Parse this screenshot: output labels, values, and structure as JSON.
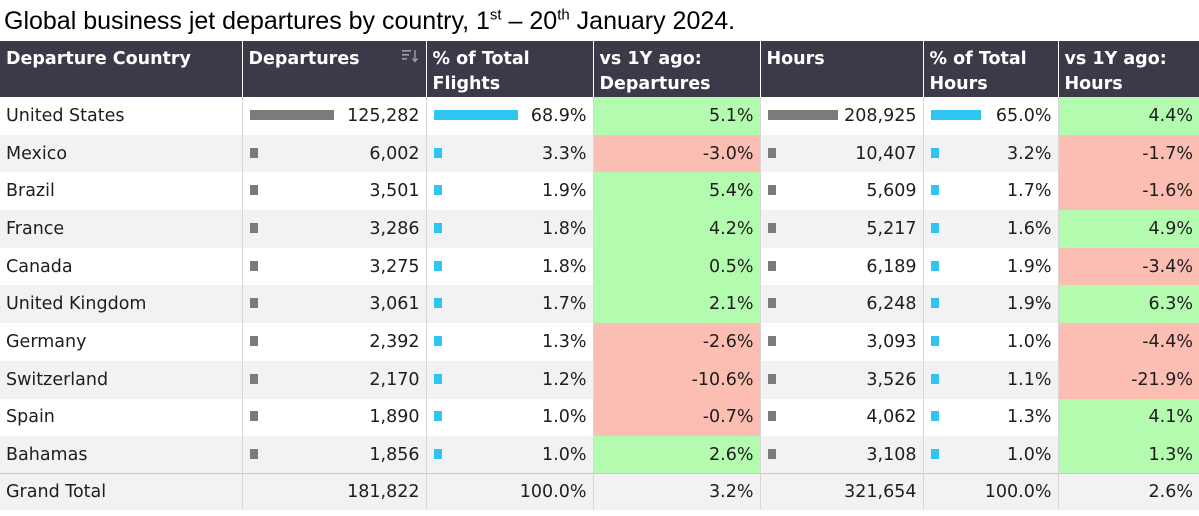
{
  "title": {
    "part1": "Global business jet departures by country, 1",
    "sup1": "st",
    "part2": " – 20",
    "sup2": "th",
    "part3": " January 2024."
  },
  "colors": {
    "positive": "#b3fbae",
    "negative": "#fcbdb3",
    "bar_gray": "#7b7b7b",
    "bar_blue": "#2ec5f3",
    "header_bg": "#3b3a49"
  },
  "chart_data": {
    "type": "table",
    "columns": [
      "Departure Country",
      "Departures",
      "% of Total Flights",
      "vs 1Y ago: Departures",
      "Hours",
      "% of Total Hours",
      "vs 1Y ago: Hours"
    ],
    "rows": [
      {
        "country": "United States",
        "departures": "125,282",
        "dep_share": "68.9%",
        "dep_yoy": "5.1%",
        "hours": "208,925",
        "hours_share": "65.0%",
        "hours_yoy": "4.4%",
        "dep_num": 125282,
        "dep_pct": 68.9,
        "dep_yoy_num": 5.1,
        "hours_num": 208925,
        "hours_pct": 65.0,
        "hours_yoy_num": 4.4
      },
      {
        "country": "Mexico",
        "departures": "6,002",
        "dep_share": "3.3%",
        "dep_yoy": "-3.0%",
        "hours": "10,407",
        "hours_share": "3.2%",
        "hours_yoy": "-1.7%",
        "dep_num": 6002,
        "dep_pct": 3.3,
        "dep_yoy_num": -3.0,
        "hours_num": 10407,
        "hours_pct": 3.2,
        "hours_yoy_num": -1.7
      },
      {
        "country": "Brazil",
        "departures": "3,501",
        "dep_share": "1.9%",
        "dep_yoy": "5.4%",
        "hours": "5,609",
        "hours_share": "1.7%",
        "hours_yoy": "-1.6%",
        "dep_num": 3501,
        "dep_pct": 1.9,
        "dep_yoy_num": 5.4,
        "hours_num": 5609,
        "hours_pct": 1.7,
        "hours_yoy_num": -1.6
      },
      {
        "country": "France",
        "departures": "3,286",
        "dep_share": "1.8%",
        "dep_yoy": "4.2%",
        "hours": "5,217",
        "hours_share": "1.6%",
        "hours_yoy": "4.9%",
        "dep_num": 3286,
        "dep_pct": 1.8,
        "dep_yoy_num": 4.2,
        "hours_num": 5217,
        "hours_pct": 1.6,
        "hours_yoy_num": 4.9
      },
      {
        "country": "Canada",
        "departures": "3,275",
        "dep_share": "1.8%",
        "dep_yoy": "0.5%",
        "hours": "6,189",
        "hours_share": "1.9%",
        "hours_yoy": "-3.4%",
        "dep_num": 3275,
        "dep_pct": 1.8,
        "dep_yoy_num": 0.5,
        "hours_num": 6189,
        "hours_pct": 1.9,
        "hours_yoy_num": -3.4
      },
      {
        "country": "United Kingdom",
        "departures": "3,061",
        "dep_share": "1.7%",
        "dep_yoy": "2.1%",
        "hours": "6,248",
        "hours_share": "1.9%",
        "hours_yoy": "6.3%",
        "dep_num": 3061,
        "dep_pct": 1.7,
        "dep_yoy_num": 2.1,
        "hours_num": 6248,
        "hours_pct": 1.9,
        "hours_yoy_num": 6.3
      },
      {
        "country": "Germany",
        "departures": "2,392",
        "dep_share": "1.3%",
        "dep_yoy": "-2.6%",
        "hours": "3,093",
        "hours_share": "1.0%",
        "hours_yoy": "-4.4%",
        "dep_num": 2392,
        "dep_pct": 1.3,
        "dep_yoy_num": -2.6,
        "hours_num": 3093,
        "hours_pct": 1.0,
        "hours_yoy_num": -4.4
      },
      {
        "country": "Switzerland",
        "departures": "2,170",
        "dep_share": "1.2%",
        "dep_yoy": "-10.6%",
        "hours": "3,526",
        "hours_share": "1.1%",
        "hours_yoy": "-21.9%",
        "dep_num": 2170,
        "dep_pct": 1.2,
        "dep_yoy_num": -10.6,
        "hours_num": 3526,
        "hours_pct": 1.1,
        "hours_yoy_num": -21.9
      },
      {
        "country": "Spain",
        "departures": "1,890",
        "dep_share": "1.0%",
        "dep_yoy": "-0.7%",
        "hours": "4,062",
        "hours_share": "1.3%",
        "hours_yoy": "4.1%",
        "dep_num": 1890,
        "dep_pct": 1.0,
        "dep_yoy_num": -0.7,
        "hours_num": 4062,
        "hours_pct": 1.3,
        "hours_yoy_num": 4.1
      },
      {
        "country": "Bahamas",
        "departures": "1,856",
        "dep_share": "1.0%",
        "dep_yoy": "2.6%",
        "hours": "3,108",
        "hours_share": "1.0%",
        "hours_yoy": "1.3%",
        "dep_num": 1856,
        "dep_pct": 1.0,
        "dep_yoy_num": 2.6,
        "hours_num": 3108,
        "hours_pct": 1.0,
        "hours_yoy_num": 1.3
      }
    ],
    "total": {
      "label": "Grand Total",
      "departures": "181,822",
      "dep_share": "100.0%",
      "dep_yoy": "3.2%",
      "hours": "321,654",
      "hours_share": "100.0%",
      "hours_yoy": "2.6%"
    }
  }
}
